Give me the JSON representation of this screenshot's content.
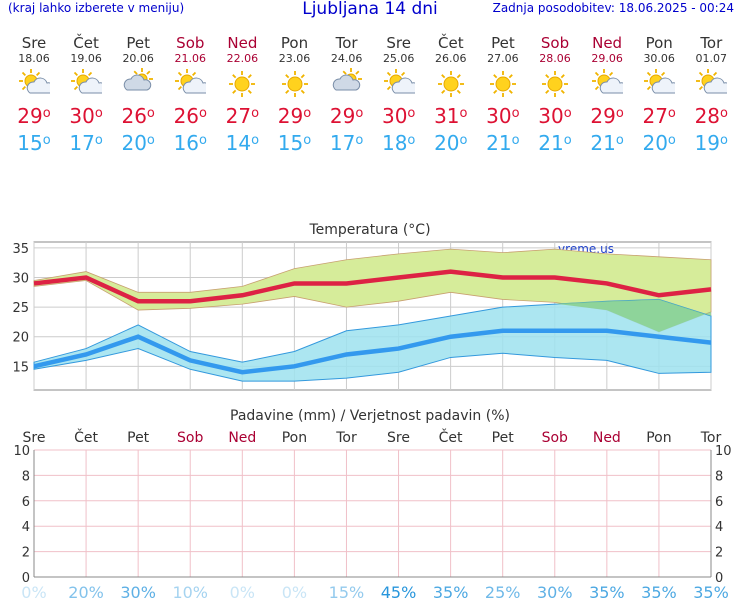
{
  "header": {
    "link_text": "(kraj lahko izberete v meniju)",
    "title": "Ljubljana 14 dni",
    "updated": "Zadnja posodobitev: 18.06.2025 - 00:24"
  },
  "days": [
    {
      "name": "Sre",
      "date": "18.06",
      "weekend": false,
      "icon": "sun-cloud-icon",
      "tmax": "29",
      "tmin": "15",
      "precip_prob": "0%"
    },
    {
      "name": "Čet",
      "date": "19.06",
      "weekend": false,
      "icon": "sun-cloud-icon",
      "tmax": "30",
      "tmin": "17",
      "precip_prob": "20%"
    },
    {
      "name": "Pet",
      "date": "20.06",
      "weekend": false,
      "icon": "cloud-sun-icon",
      "tmax": "26",
      "tmin": "20",
      "precip_prob": "30%"
    },
    {
      "name": "Sob",
      "date": "21.06",
      "weekend": true,
      "icon": "sun-cloud-icon",
      "tmax": "26",
      "tmin": "16",
      "precip_prob": "10%"
    },
    {
      "name": "Ned",
      "date": "22.06",
      "weekend": true,
      "icon": "sun-icon",
      "tmax": "27",
      "tmin": "14",
      "precip_prob": "0%"
    },
    {
      "name": "Pon",
      "date": "23.06",
      "weekend": false,
      "icon": "sun-icon",
      "tmax": "29",
      "tmin": "15",
      "precip_prob": "0%"
    },
    {
      "name": "Tor",
      "date": "24.06",
      "weekend": false,
      "icon": "cloud-sun-icon",
      "tmax": "29",
      "tmin": "17",
      "precip_prob": "15%"
    },
    {
      "name": "Sre",
      "date": "25.06",
      "weekend": false,
      "icon": "sun-cloud-icon",
      "tmax": "30",
      "tmin": "18",
      "precip_prob": "45%"
    },
    {
      "name": "Čet",
      "date": "26.06",
      "weekend": false,
      "icon": "sun-icon",
      "tmax": "31",
      "tmin": "20",
      "precip_prob": "35%"
    },
    {
      "name": "Pet",
      "date": "27.06",
      "weekend": false,
      "icon": "sun-icon",
      "tmax": "30",
      "tmin": "21",
      "precip_prob": "25%"
    },
    {
      "name": "Sob",
      "date": "28.06",
      "weekend": true,
      "icon": "sun-icon",
      "tmax": "30",
      "tmin": "21",
      "precip_prob": "30%"
    },
    {
      "name": "Ned",
      "date": "29.06",
      "weekend": true,
      "icon": "sun-cloud-icon",
      "tmax": "29",
      "tmin": "21",
      "precip_prob": "35%"
    },
    {
      "name": "Pon",
      "date": "30.06",
      "weekend": false,
      "icon": "sun-cloud-icon",
      "tmax": "27",
      "tmin": "20",
      "precip_prob": "35%"
    },
    {
      "name": "Tor",
      "date": "01.07",
      "weekend": false,
      "icon": "sun-cloud-icon",
      "tmax": "28",
      "tmin": "19",
      "precip_prob": "35%"
    }
  ],
  "colors": {
    "weekday": "#333333",
    "weekend": "#aa0033",
    "tmax": "#dd1133",
    "tmin": "#33aaee",
    "max_band": "#d6ec9a",
    "min_band": "#9ee2ee",
    "overlap": "#88d088",
    "grid": "#bbbbbb"
  },
  "chart_data": [
    {
      "type": "line",
      "title": "Temperatura (°C)",
      "watermark": "vreme.us",
      "x": [
        "18.06",
        "19.06",
        "20.06",
        "21.06",
        "22.06",
        "23.06",
        "24.06",
        "25.06",
        "26.06",
        "27.06",
        "28.06",
        "29.06",
        "30.06",
        "01.07"
      ],
      "ylim": [
        11,
        36
      ],
      "yticks": [
        15,
        20,
        25,
        30,
        35
      ],
      "series": [
        {
          "role": "max",
          "values": [
            29,
            30,
            26,
            26,
            27,
            29,
            29,
            30,
            31,
            30,
            30,
            29,
            27,
            28
          ],
          "band_low": [
            28.5,
            29.5,
            24.5,
            24.8,
            25.5,
            26.8,
            25,
            26,
            27.5,
            26.3,
            25.8,
            24.5,
            20.8,
            24.2
          ],
          "band_high": [
            29.5,
            31,
            27.5,
            27.5,
            28.5,
            31.5,
            33,
            34,
            34.8,
            34.2,
            34.8,
            34,
            33.5,
            33
          ]
        },
        {
          "role": "min",
          "values": [
            15,
            17,
            20,
            16,
            14,
            15,
            17,
            18,
            20,
            21,
            21,
            21,
            20,
            19
          ],
          "band_low": [
            14.5,
            16,
            18,
            14.5,
            12.5,
            12.5,
            13,
            14,
            16.5,
            17.2,
            16.5,
            16,
            13.8,
            14
          ],
          "band_high": [
            15.7,
            18,
            22,
            17.5,
            15.7,
            17.5,
            21,
            22,
            23.5,
            25,
            25.5,
            26,
            26.3,
            23.5
          ]
        }
      ]
    },
    {
      "type": "bar",
      "title": "Padavine (mm) / Verjetnost padavin (%)",
      "categories": [
        "Sre",
        "Čet",
        "Pet",
        "Sob",
        "Ned",
        "Pon",
        "Tor",
        "Sre",
        "Čet",
        "Pet",
        "Sob",
        "Ned",
        "Pon",
        "Tor"
      ],
      "values": [
        0,
        0,
        0,
        0,
        0,
        0,
        0,
        0,
        0,
        0,
        0,
        0,
        0,
        0
      ],
      "probability": [
        0,
        20,
        30,
        10,
        0,
        0,
        15,
        45,
        35,
        25,
        30,
        35,
        35,
        35
      ],
      "ylim": [
        0,
        10
      ],
      "yticks": [
        0,
        2,
        4,
        6,
        8,
        10
      ]
    }
  ]
}
